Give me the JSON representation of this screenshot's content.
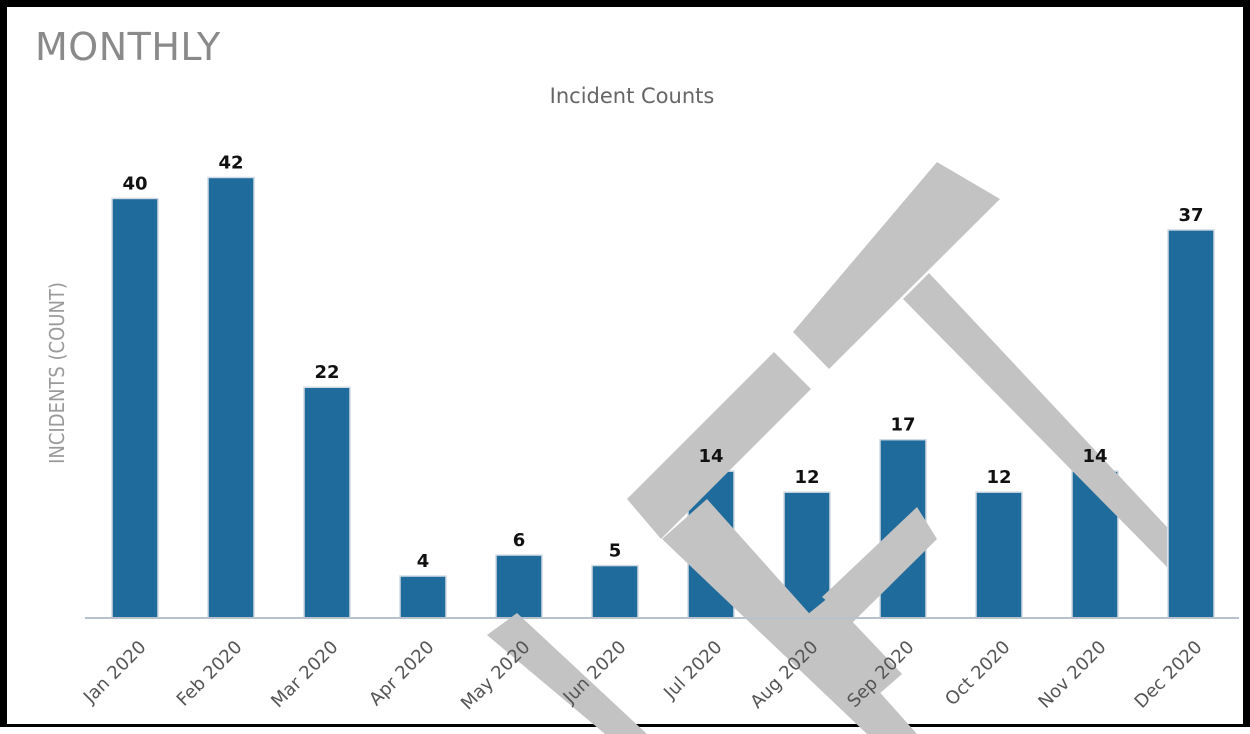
{
  "panel": {
    "title": "MONTHLY"
  },
  "chart_data": {
    "type": "bar",
    "title": "Incident Counts",
    "xlabel": "",
    "ylabel": "INCIDENTS (COUNT)",
    "categories": [
      "Jan 2020",
      "Feb 2020",
      "Mar 2020",
      "Apr 2020",
      "May 2020",
      "Jun 2020",
      "Jul 2020",
      "Aug 2020",
      "Sep 2020",
      "Oct 2020",
      "Nov 2020",
      "Dec 2020"
    ],
    "values": [
      40,
      42,
      22,
      4,
      6,
      5,
      14,
      12,
      17,
      12,
      14,
      37
    ],
    "ylim": [
      0,
      45
    ],
    "grid": false,
    "data_labels": true,
    "colors": {
      "bar": "#1f6b9b",
      "axis": "#b8c2cc"
    }
  }
}
